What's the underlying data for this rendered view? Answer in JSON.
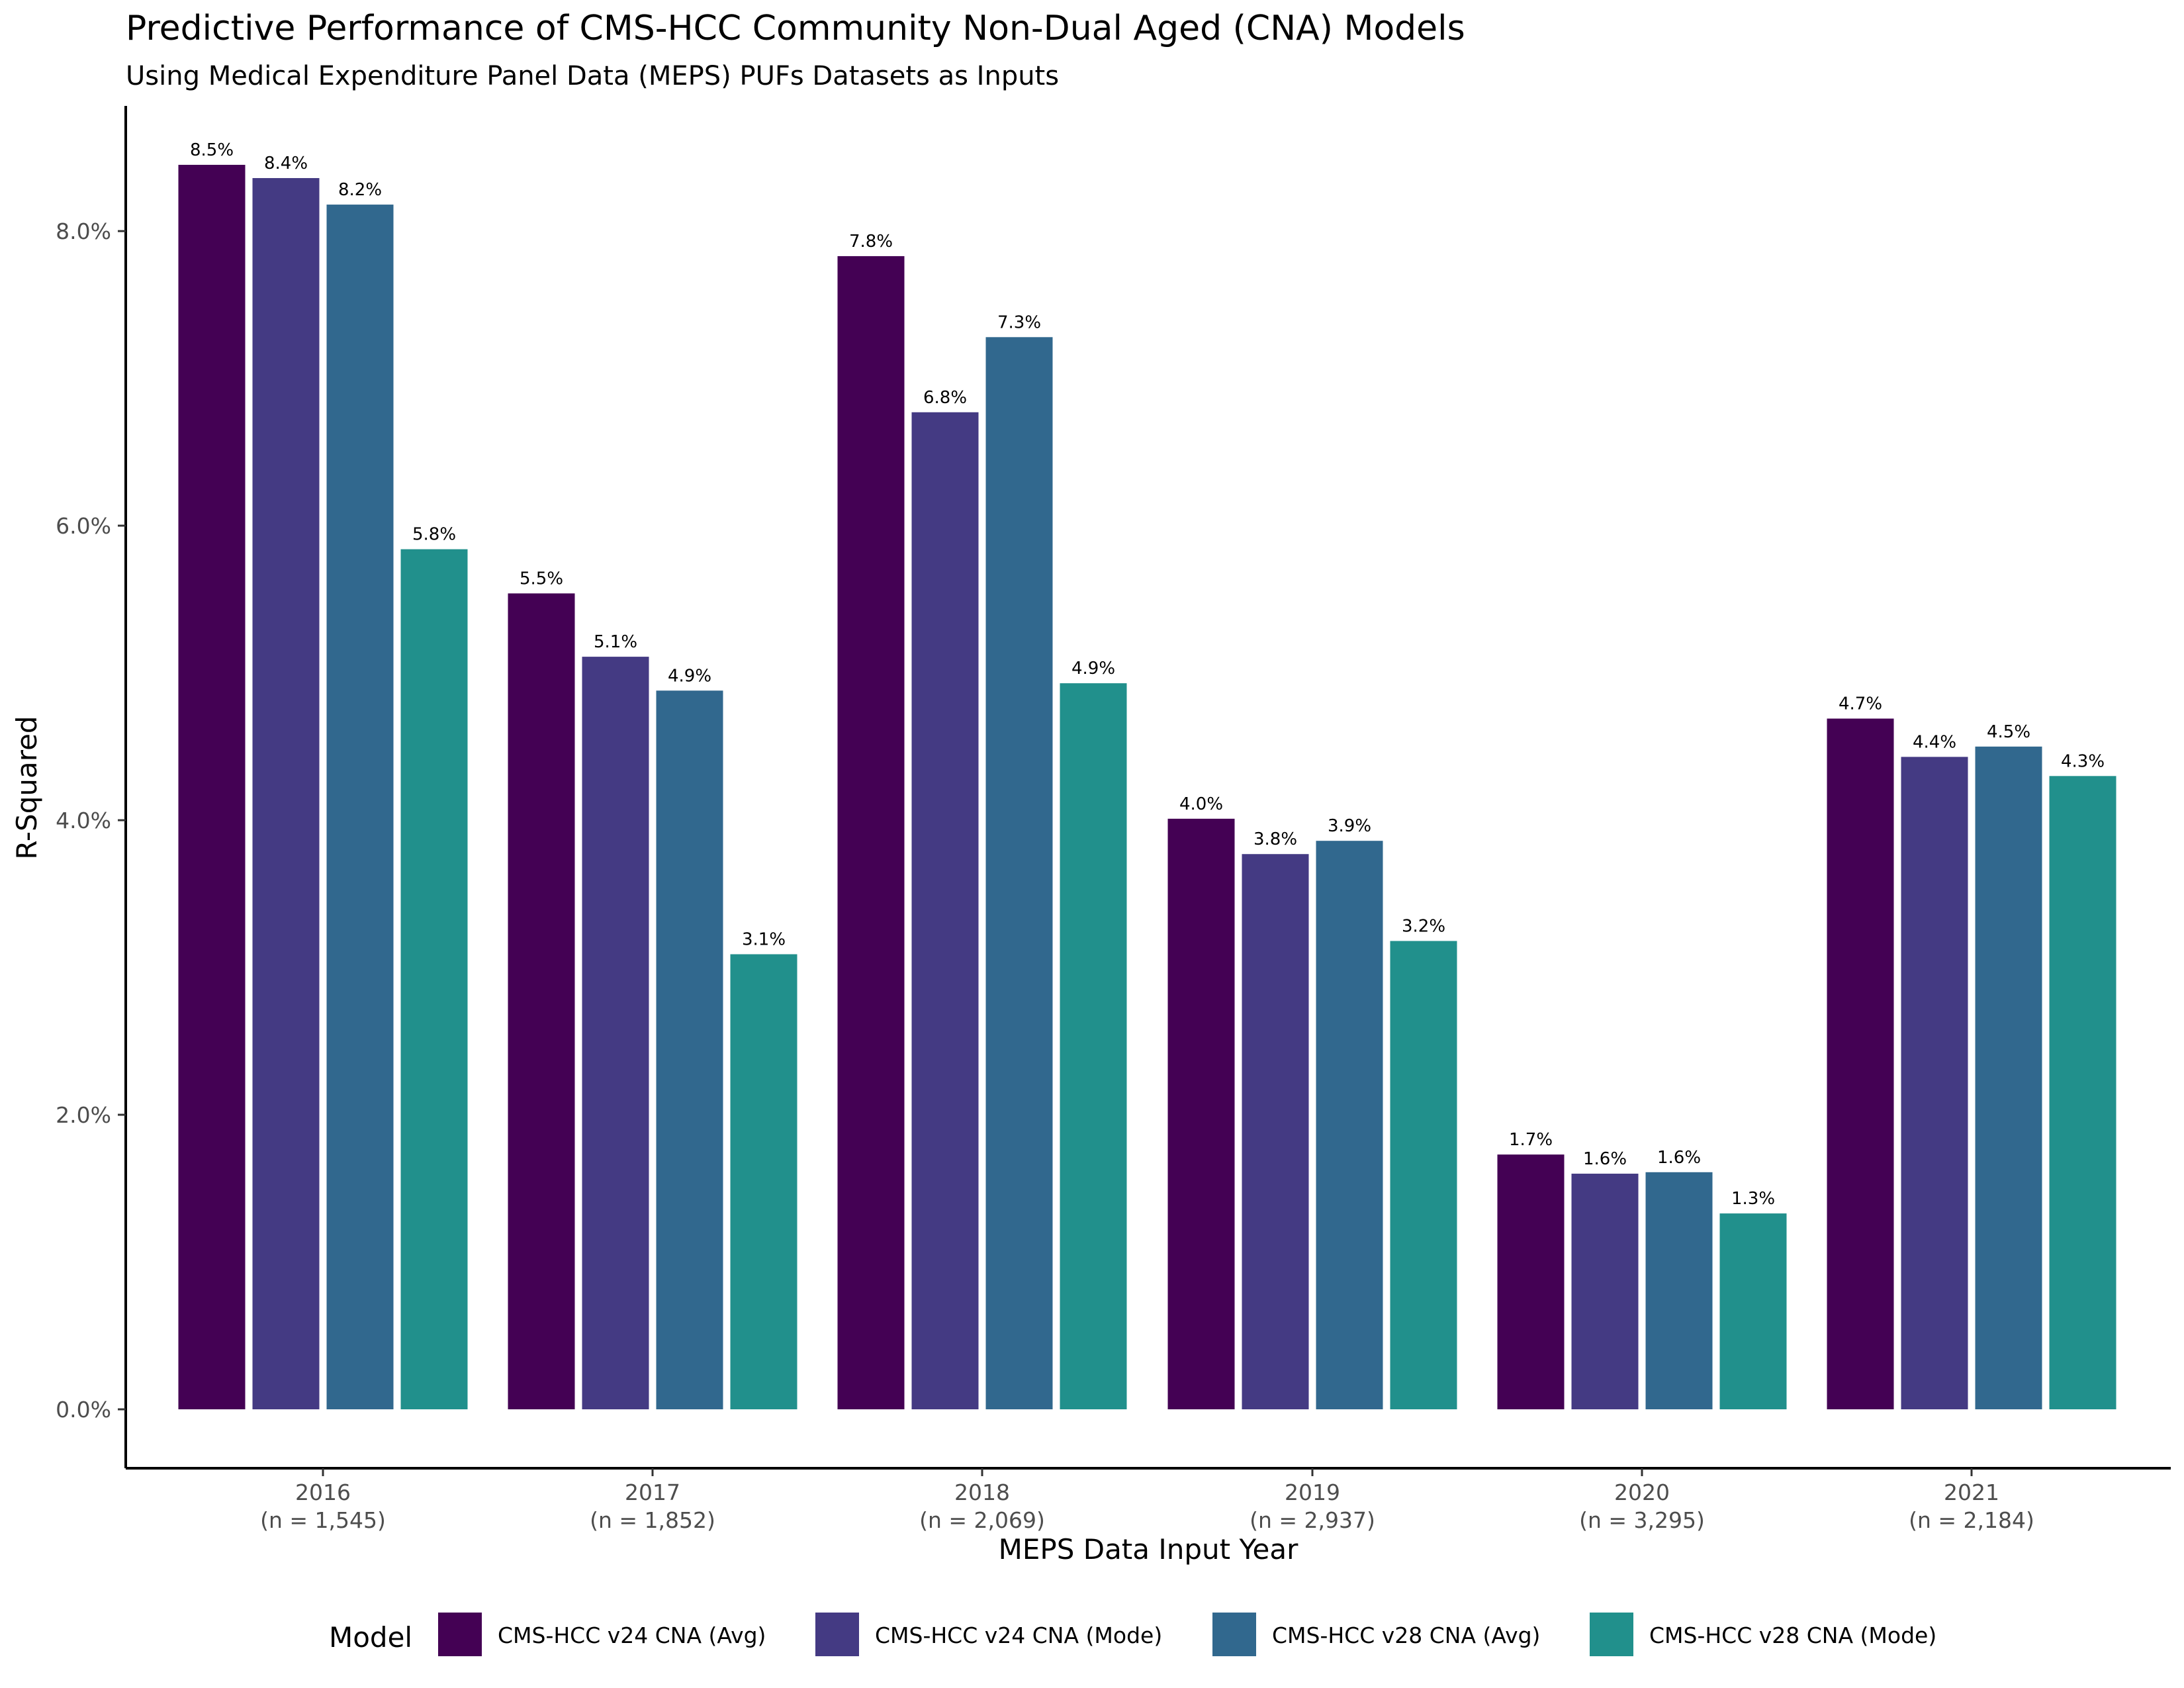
{
  "chart_data": {
    "type": "bar",
    "title": "Predictive Performance of CMS-HCC Community Non-Dual Aged (CNA) Models",
    "subtitle": "Using Medical Expenditure Panel Data (MEPS) PUFs Datasets as Inputs",
    "xlabel": "MEPS Data Input Year",
    "ylabel": "R-Squared",
    "ylim": [
      -0.4,
      8.85
    ],
    "yticks": [
      0,
      2,
      4,
      6,
      8
    ],
    "ytick_labels": [
      "0.0%",
      "2.0%",
      "4.0%",
      "6.0%",
      "8.0%"
    ],
    "categories": [
      "2016",
      "2017",
      "2018",
      "2019",
      "2020",
      "2021"
    ],
    "category_sublabels": [
      "(n = 1,545)",
      "(n = 1,852)",
      "(n = 2,069)",
      "(n = 2,937)",
      "(n = 3,295)",
      "(n = 2,184)"
    ],
    "legend_title": "Model",
    "legend_position": "bottom",
    "grid": false,
    "series": [
      {
        "name": "CMS-HCC v24 CNA (Avg)",
        "color": "#440154",
        "values": [
          8.45,
          5.54,
          7.83,
          4.01,
          1.73,
          4.69
        ],
        "labels": [
          "8.5%",
          "5.5%",
          "7.8%",
          "4.0%",
          "1.7%",
          "4.7%"
        ]
      },
      {
        "name": "CMS-HCC v24 CNA (Mode)",
        "color": "#443A83",
        "values": [
          8.36,
          5.11,
          6.77,
          3.77,
          1.6,
          4.43
        ],
        "labels": [
          "8.4%",
          "5.1%",
          "6.8%",
          "3.8%",
          "1.6%",
          "4.4%"
        ]
      },
      {
        "name": "CMS-HCC v28 CNA (Avg)",
        "color": "#31688E",
        "values": [
          8.18,
          4.88,
          7.28,
          3.86,
          1.61,
          4.5
        ],
        "labels": [
          "8.2%",
          "4.9%",
          "7.3%",
          "3.9%",
          "1.6%",
          "4.5%"
        ]
      },
      {
        "name": "CMS-HCC v28 CNA (Mode)",
        "color": "#21908C",
        "values": [
          5.84,
          3.09,
          4.93,
          3.18,
          1.33,
          4.3
        ],
        "labels": [
          "5.8%",
          "3.1%",
          "4.9%",
          "3.2%",
          "1.3%",
          "4.3%"
        ]
      }
    ]
  }
}
